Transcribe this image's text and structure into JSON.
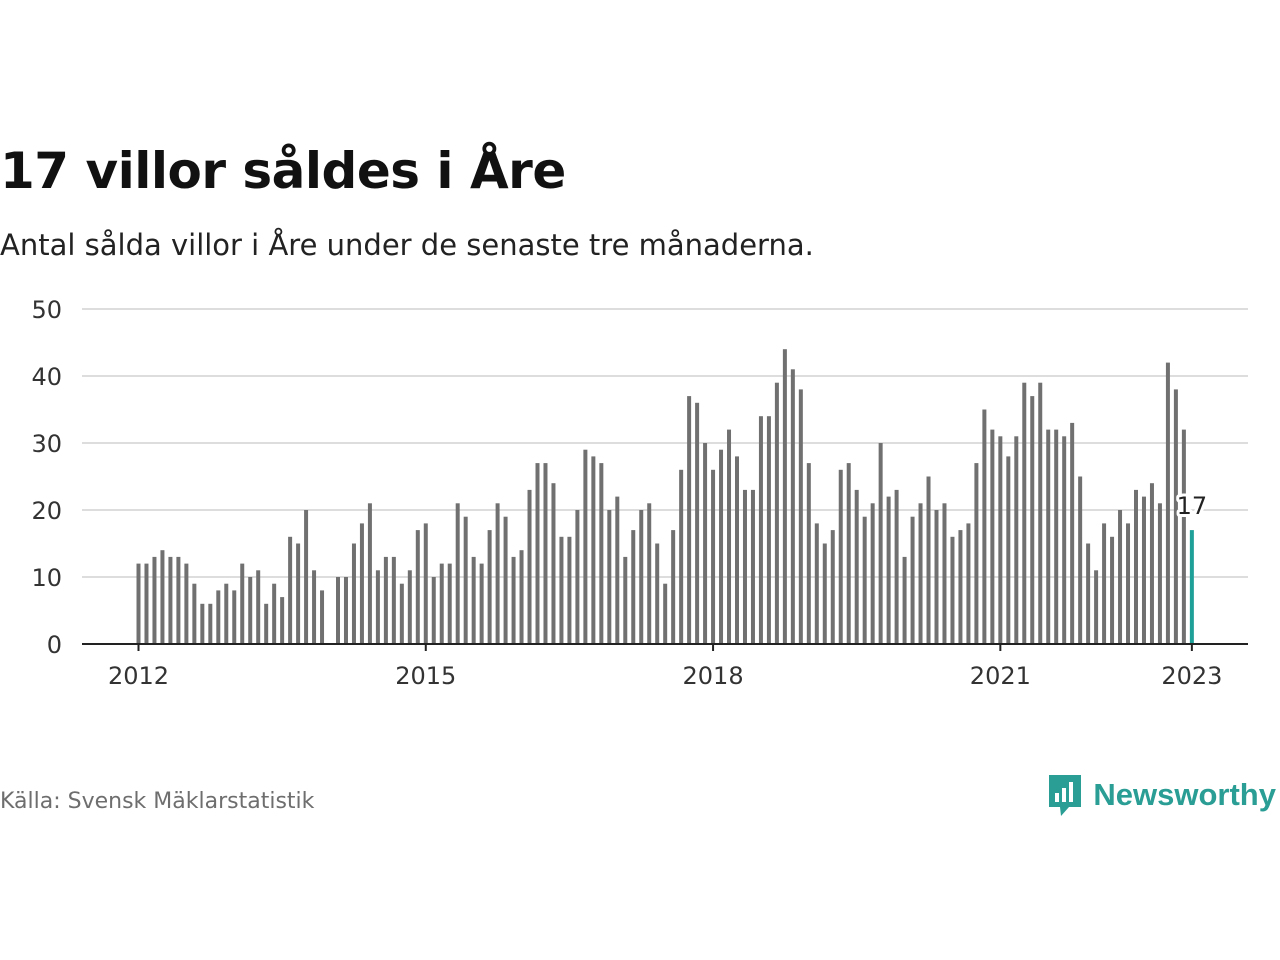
{
  "title": "17 villor såldes i Åre",
  "subtitle": "Antal sålda villor i Åre under de senaste tre månaderna.",
  "source": "Källa: Svensk Mäklarstatistik",
  "brand": {
    "name": "Newsworthy",
    "icon": "newsworthy-logo-icon"
  },
  "colors": {
    "bar": "#707070",
    "highlight": "#1e9f98",
    "grid": "#dddddd",
    "axis": "#222222"
  },
  "chart_data": {
    "type": "bar",
    "x_start": "2012-01",
    "x_end": "2023-01",
    "x_step": "month",
    "xticks": [
      "2012",
      "2015",
      "2018",
      "2021",
      "2023"
    ],
    "ylim": [
      0,
      50
    ],
    "yticks": [
      0,
      10,
      20,
      30,
      40,
      50
    ],
    "grid": true,
    "values": [
      12,
      12,
      13,
      14,
      13,
      13,
      12,
      9,
      6,
      6,
      8,
      9,
      8,
      12,
      10,
      11,
      6,
      9,
      7,
      16,
      15,
      20,
      11,
      8,
      null,
      10,
      10,
      15,
      18,
      21,
      11,
      13,
      13,
      9,
      11,
      17,
      18,
      10,
      12,
      12,
      21,
      19,
      13,
      12,
      17,
      21,
      19,
      13,
      14,
      23,
      27,
      27,
      24,
      16,
      16,
      20,
      29,
      28,
      27,
      20,
      22,
      13,
      17,
      20,
      21,
      15,
      9,
      17,
      26,
      37,
      36,
      30,
      26,
      29,
      32,
      28,
      23,
      23,
      34,
      34,
      39,
      44,
      41,
      38,
      27,
      18,
      15,
      17,
      26,
      27,
      23,
      19,
      21,
      30,
      22,
      23,
      13,
      19,
      21,
      25,
      20,
      21,
      16,
      17,
      18,
      27,
      35,
      32,
      31,
      28,
      31,
      39,
      37,
      39,
      32,
      32,
      31,
      33,
      25,
      15,
      11,
      18,
      16,
      20,
      18,
      23,
      22,
      24,
      21,
      42,
      38,
      32,
      17
    ],
    "highlight_label": "17"
  }
}
